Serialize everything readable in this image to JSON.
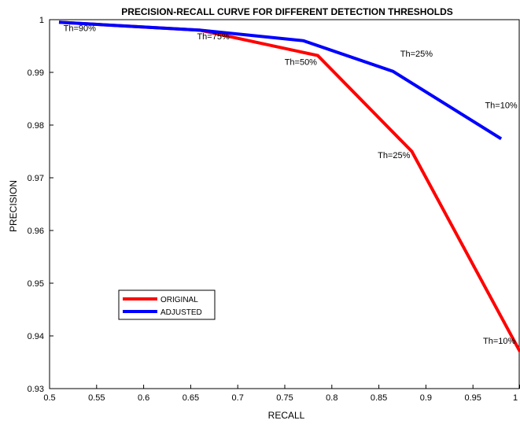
{
  "chart_data": {
    "type": "line",
    "title": "PRECISION-RECALL CURVE FOR DIFFERENT DETECTION THRESHOLDS",
    "xlabel": "RECALL",
    "ylabel": "PRECISION",
    "xlim": [
      0.5,
      1.0
    ],
    "ylim": [
      0.93,
      1.0
    ],
    "xticks": [
      "0.5",
      "0.55",
      "0.6",
      "0.65",
      "0.7",
      "0.75",
      "0.8",
      "0.85",
      "0.9",
      "0.95",
      "1"
    ],
    "yticks": [
      "0.93",
      "0.94",
      "0.95",
      "0.96",
      "0.97",
      "0.98",
      "0.99",
      "1"
    ],
    "grid": false,
    "legend_position": "bottom-left",
    "series": [
      {
        "name": "ORIGINAL",
        "color": "#ff0000",
        "x": [
          0.51,
          0.66,
          0.785,
          0.885,
          1.0
        ],
        "y": [
          0.9995,
          0.998,
          0.9932,
          0.975,
          0.937
        ]
      },
      {
        "name": "ADJUSTED",
        "color": "#0000ff",
        "x": [
          0.51,
          0.66,
          0.77,
          0.865,
          0.98
        ],
        "y": [
          0.9995,
          0.998,
          0.996,
          0.9902,
          0.9774
        ]
      }
    ],
    "annotations": [
      {
        "text": "Th=90%",
        "x": 0.532,
        "y": 0.9978
      },
      {
        "text": "Th=75%",
        "x": 0.674,
        "y": 0.9963
      },
      {
        "text": "Th=50%",
        "x": 0.767,
        "y": 0.9914
      },
      {
        "text": "Th=25%",
        "x": 0.89,
        "y": 0.993
      },
      {
        "text": "Th=10%",
        "x": 0.98,
        "y": 0.9832
      },
      {
        "text": "Th=25%",
        "x": 0.866,
        "y": 0.9737
      },
      {
        "text": "Th=10%",
        "x": 0.978,
        "y": 0.9385
      }
    ]
  }
}
